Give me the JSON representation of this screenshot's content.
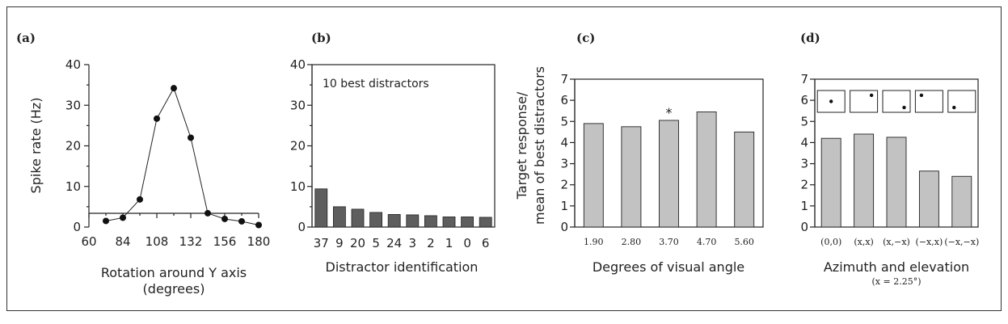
{
  "chart_data": [
    {
      "panel_label": "(a)",
      "type": "line",
      "x": [
        72,
        84,
        96,
        108,
        120,
        132,
        144,
        156,
        168,
        180
      ],
      "y": [
        1.5,
        2.3,
        6.8,
        26.7,
        34.2,
        22.0,
        3.4,
        2.0,
        1.4,
        0.5
      ],
      "xlabel": "Rotation around Y axis",
      "xlabel2": "(degrees)",
      "ylabel": "Spike rate (Hz)",
      "xlim": [
        60,
        180
      ],
      "ylim": [
        0,
        40
      ],
      "xticks": [
        "60",
        "84",
        "108",
        "132",
        "156",
        "180"
      ],
      "yticks": [
        "0",
        "10",
        "20",
        "30",
        "40"
      ]
    },
    {
      "panel_label": "(b)",
      "type": "bar",
      "categories": [
        "37",
        "9",
        "20",
        "5",
        "24",
        "3",
        "2",
        "1",
        "0",
        "6"
      ],
      "values": [
        9.4,
        5.0,
        4.4,
        3.6,
        3.1,
        3.0,
        2.8,
        2.5,
        2.5,
        2.4
      ],
      "annotation": "10 best distractors",
      "xlabel": "Distractor identification",
      "ylabel": "",
      "ylim": [
        0,
        40
      ],
      "yticks": [
        "0",
        "10",
        "20",
        "30",
        "40"
      ],
      "bar_color": "#5e5e5e"
    },
    {
      "panel_label": "(c)",
      "type": "bar",
      "categories": [
        "1.90",
        "2.80",
        "3.70",
        "4.70",
        "5.60"
      ],
      "values": [
        4.9,
        4.75,
        5.05,
        5.45,
        4.5
      ],
      "marker": "*",
      "xlabel": "Degrees of visual angle",
      "ylabel": "Target response/",
      "ylabel2": "mean of best distractors",
      "ylim": [
        0,
        7
      ],
      "yticks": [
        "0",
        "1",
        "2",
        "3",
        "4",
        "5",
        "6",
        "7"
      ],
      "bar_color": "#c2c2c2"
    },
    {
      "panel_label": "(d)",
      "type": "bar",
      "categories": [
        "(0,0)",
        "(x,x)",
        "(x,−x)",
        "(−x,x)",
        "(−x,−x)"
      ],
      "values": [
        4.2,
        4.4,
        4.25,
        2.65,
        2.4
      ],
      "xlabel": "Azimuth and elevation",
      "note": "(x = 2.25°)",
      "ylabel": "",
      "ylim": [
        0,
        7
      ],
      "yticks": [
        "0",
        "1",
        "2",
        "3",
        "4",
        "5",
        "6",
        "7"
      ],
      "bar_color": "#c2c2c2",
      "position_icons": [
        "center",
        "upper-right",
        "lower-right",
        "upper-left",
        "lower-left"
      ]
    }
  ]
}
